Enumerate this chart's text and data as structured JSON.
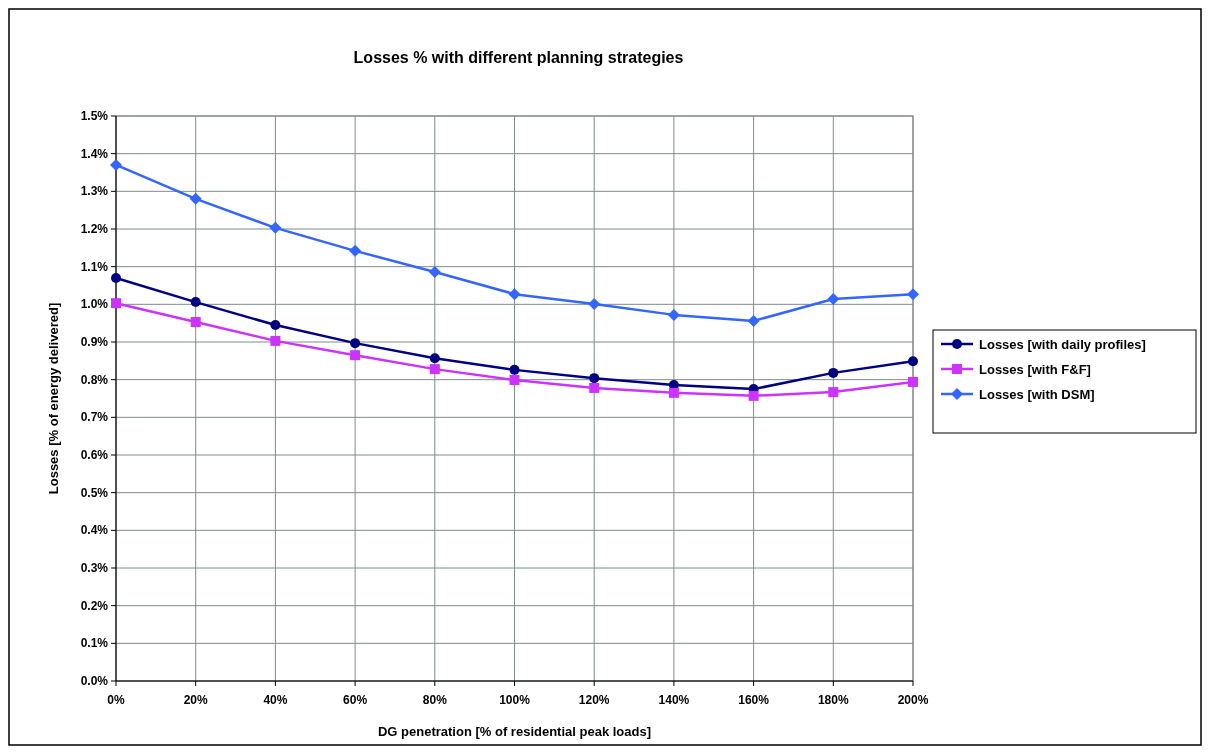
{
  "chart_data": {
    "type": "line",
    "title": "Losses % with different planning strategies",
    "xlabel": "DG penetration [% of residential peak loads]",
    "ylabel": "Losses [% of energy delivered]",
    "x": [
      0,
      20,
      40,
      60,
      80,
      100,
      120,
      140,
      160,
      180,
      200
    ],
    "xlim": [
      0,
      200
    ],
    "xticks": [
      {
        "value": 0,
        "label": "0%"
      },
      {
        "value": 20,
        "label": "20%"
      },
      {
        "value": 40,
        "label": "40%"
      },
      {
        "value": 60,
        "label": "60%"
      },
      {
        "value": 80,
        "label": "80%"
      },
      {
        "value": 100,
        "label": "100%"
      },
      {
        "value": 120,
        "label": "120%"
      },
      {
        "value": 140,
        "label": "140%"
      },
      {
        "value": 160,
        "label": "160%"
      },
      {
        "value": 180,
        "label": "180%"
      },
      {
        "value": 200,
        "label": "200%"
      }
    ],
    "ylim": [
      0,
      1.5
    ],
    "yticks": [
      {
        "value": 0,
        "label": "0.0%"
      },
      {
        "value": 0.1,
        "label": "0.1%"
      },
      {
        "value": 0.2,
        "label": "0.2%"
      },
      {
        "value": 0.3,
        "label": "0.3%"
      },
      {
        "value": 0.4,
        "label": "0.4%"
      },
      {
        "value": 0.5,
        "label": "0.5%"
      },
      {
        "value": 0.6,
        "label": "0.6%"
      },
      {
        "value": 0.7,
        "label": "0.7%"
      },
      {
        "value": 0.8,
        "label": "0.8%"
      },
      {
        "value": 0.9,
        "label": "0.9%"
      },
      {
        "value": 1.0,
        "label": "1.0%"
      },
      {
        "value": 1.1,
        "label": "1.1%"
      },
      {
        "value": 1.2,
        "label": "1.2%"
      },
      {
        "value": 1.3,
        "label": "1.3%"
      },
      {
        "value": 1.4,
        "label": "1.4%"
      },
      {
        "value": 1.5,
        "label": "1.5%"
      }
    ],
    "grid": true,
    "legend": "right",
    "line_style": "solid",
    "series": [
      {
        "name": "Losses [with daily profiles]",
        "color": "#000080",
        "marker": "circle",
        "values": [
          1.07,
          1.006,
          0.945,
          0.897,
          0.857,
          0.826,
          0.804,
          0.786,
          0.775,
          0.818,
          0.849
        ]
      },
      {
        "name": "Losses [with F&F]",
        "color": "#cc33ff",
        "marker": "square",
        "values": [
          1.003,
          0.953,
          0.903,
          0.865,
          0.828,
          0.799,
          0.778,
          0.765,
          0.757,
          0.767,
          0.794
        ]
      },
      {
        "name": "Losses [with DSM]",
        "color": "#3366ff",
        "marker": "diamond",
        "values": [
          1.37,
          1.28,
          1.203,
          1.142,
          1.086,
          1.027,
          1.001,
          0.972,
          0.956,
          1.014,
          1.027
        ]
      }
    ]
  }
}
